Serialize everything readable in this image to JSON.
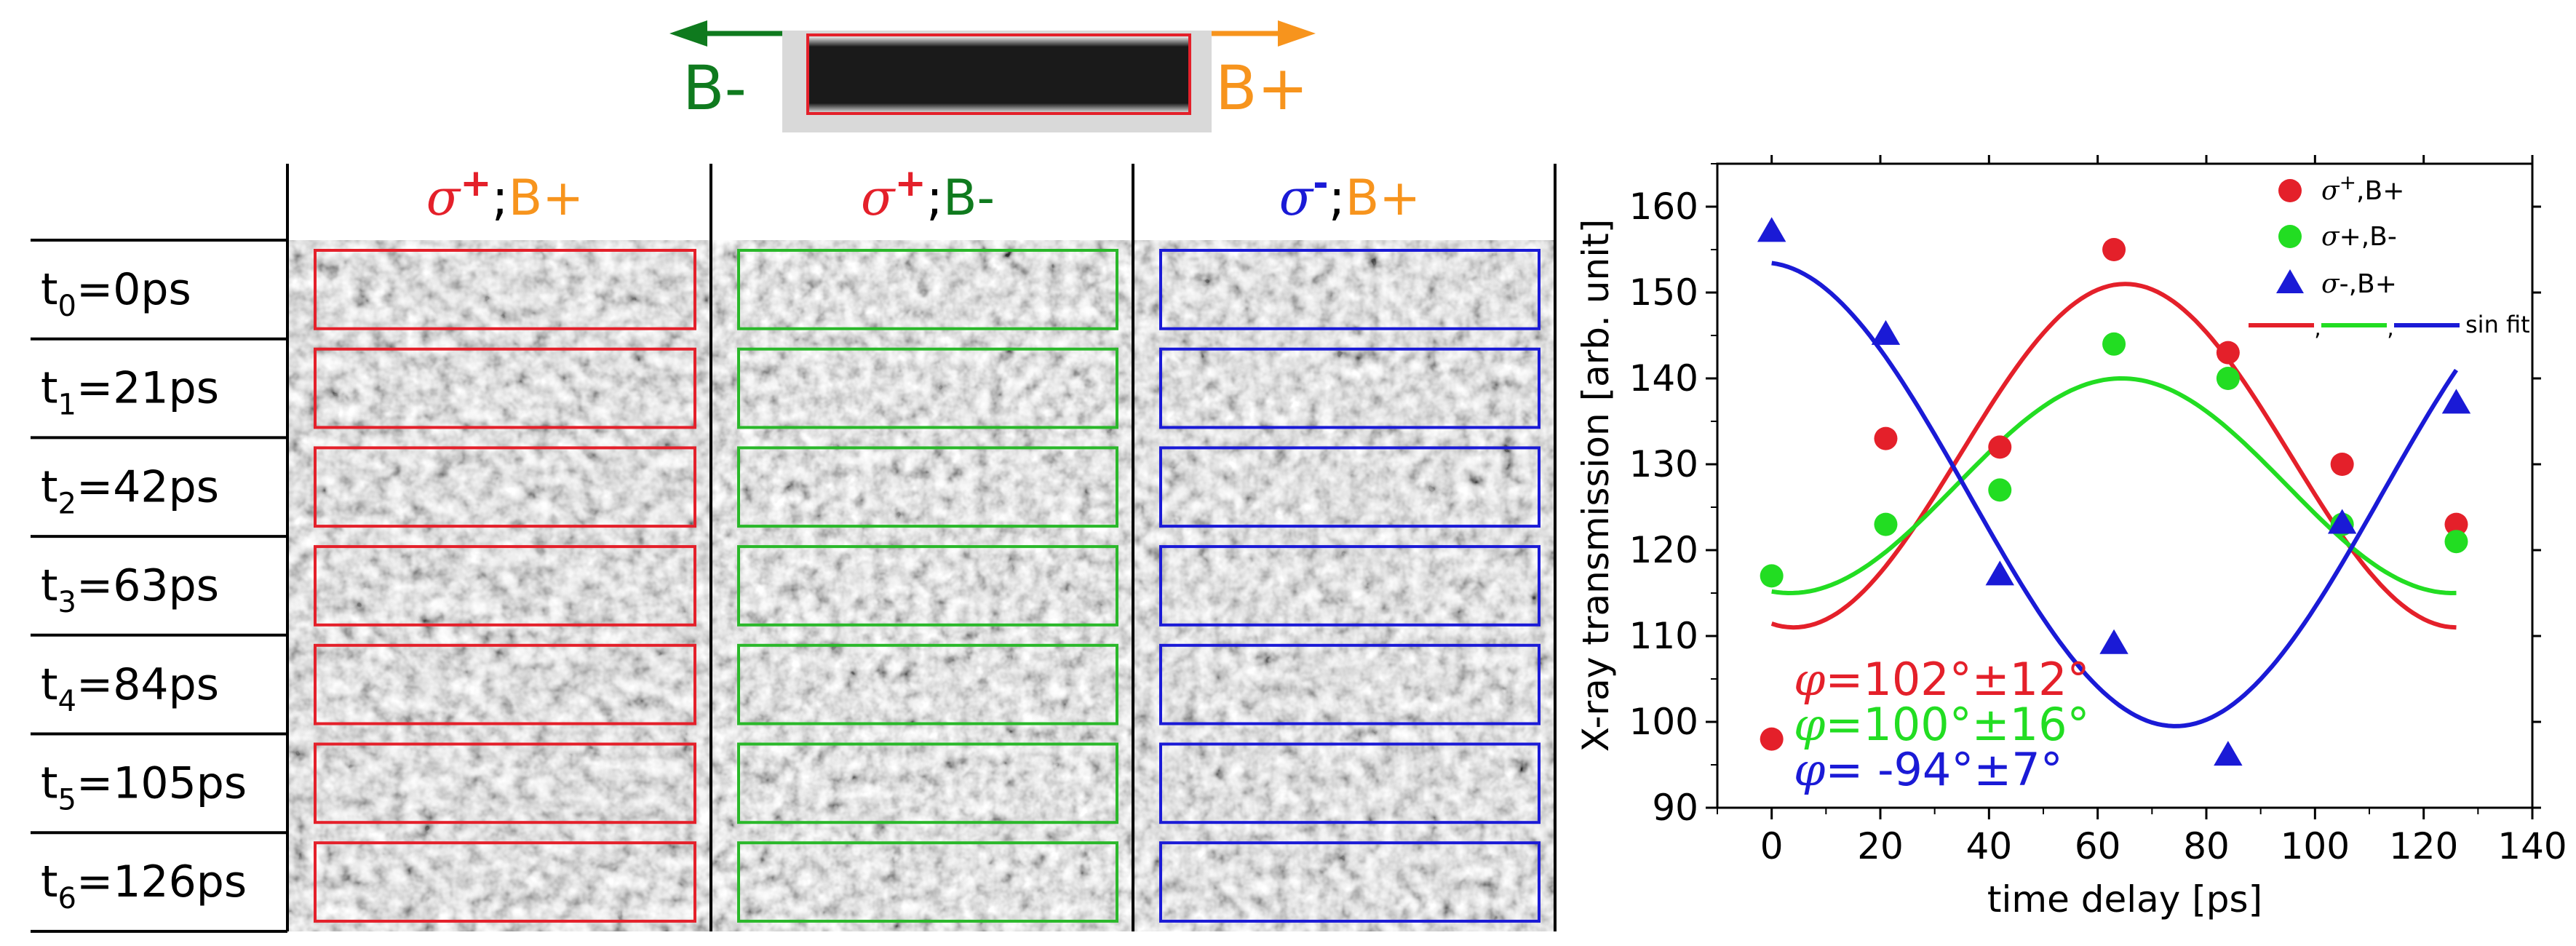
{
  "sample": {
    "left_label": "B-",
    "right_label": "B+",
    "left_color": "#0f7a1e",
    "right_color": "#f7941d",
    "box_color": "#e4202a"
  },
  "grid": {
    "columns": [
      {
        "greek": "σ",
        "sup": "+",
        "sep": ";",
        "field": "B+",
        "greek_color": "#e4202a",
        "field_color": "#f7941d",
        "box_color": "#e4202a"
      },
      {
        "greek": "σ",
        "sup": "+",
        "sep": ";",
        "field": "B-",
        "greek_color": "#e4202a",
        "field_color": "#0f7a1e",
        "box_color": "#2ab82a"
      },
      {
        "greek": "σ",
        "sup": "-",
        "sep": ";",
        "field": "B+",
        "greek_color": "#1a1ad6",
        "field_color": "#f7941d",
        "box_color": "#1a1ad6"
      }
    ],
    "rows": [
      {
        "t": "t",
        "sub": "0",
        "rest": "=0ps"
      },
      {
        "t": "t",
        "sub": "1",
        "rest": "=21ps"
      },
      {
        "t": "t",
        "sub": "2",
        "rest": "=42ps"
      },
      {
        "t": "t",
        "sub": "3",
        "rest": "=63ps"
      },
      {
        "t": "t",
        "sub": "4",
        "rest": "=84ps"
      },
      {
        "t": "t",
        "sub": "5",
        "rest": "=105ps"
      },
      {
        "t": "t",
        "sub": "6",
        "rest": "=126ps"
      }
    ]
  },
  "chart_data": {
    "type": "scatter",
    "xlabel": "time delay [ps]",
    "ylabel": "X-ray transmission [arb. unit]",
    "xlim": [
      -10,
      140
    ],
    "ylim": [
      90,
      165
    ],
    "xticks": [
      0,
      20,
      40,
      60,
      80,
      100,
      120,
      140
    ],
    "yticks": [
      90,
      100,
      110,
      120,
      130,
      140,
      150,
      160
    ],
    "series": [
      {
        "name": "σ+,B+",
        "legend_greek": "σ",
        "legend_sup": "+",
        "legend_rest": ",B+",
        "color": "#e4202a",
        "marker": "circle",
        "x": [
          0,
          21,
          42,
          63,
          84,
          105,
          126
        ],
        "y": [
          98,
          133,
          132,
          155,
          143,
          130,
          123
        ],
        "fit": {
          "amplitude": 20,
          "offset": 131,
          "period": 122,
          "phase_deg": 102
        }
      },
      {
        "name": "σ+,B-",
        "legend_greek": "σ",
        "legend_sup": "",
        "legend_rest": "+,B-",
        "color": "#22dd22",
        "marker": "circle",
        "x": [
          0,
          21,
          42,
          63,
          84,
          105,
          126
        ],
        "y": [
          117,
          123,
          127,
          144,
          140,
          123,
          121
        ],
        "fit": {
          "amplitude": 12.5,
          "offset": 127.5,
          "period": 122,
          "phase_deg": 100
        }
      },
      {
        "name": "σ-,B+",
        "legend_greek": "σ",
        "legend_sup": "",
        "legend_rest": "-,B+",
        "color": "#1a1ad6",
        "marker": "triangle",
        "x": [
          0,
          21,
          42,
          63,
          84,
          105,
          126
        ],
        "y": [
          157,
          145,
          117,
          109,
          96,
          123,
          137
        ],
        "fit": {
          "amplitude": 27,
          "offset": 126.5,
          "period": 152,
          "phase_deg": -94
        }
      }
    ],
    "fit_legend_label": "sin fit",
    "fit_legend_sep": ",",
    "annotations": [
      {
        "greek": "φ",
        "text": "=102°±12°",
        "color": "#e4202a"
      },
      {
        "greek": "φ",
        "text": "=100°±16°",
        "color": "#22dd22"
      },
      {
        "greek": "φ",
        "text": "= -94°±7°",
        "color": "#1a1ad6"
      }
    ]
  }
}
